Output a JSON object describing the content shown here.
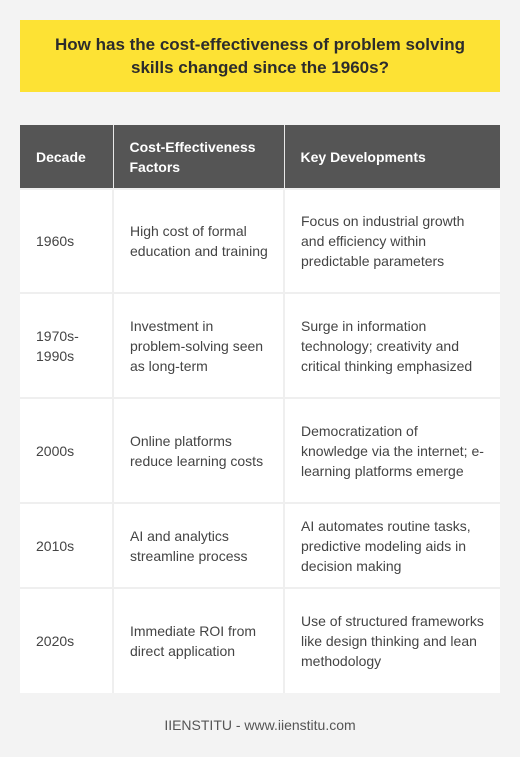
{
  "question": "How has the cost-effectiveness of problem solving skills changed since the 1960s?",
  "table": {
    "headers": [
      "Decade",
      "Cost-Effectiveness Factors",
      "Key Developments"
    ],
    "rows": [
      {
        "decade": "1960s",
        "factors": "High cost of formal education and training",
        "developments": "Focus on industrial growth and efficiency within predictable parameters"
      },
      {
        "decade": "1970s-1990s",
        "factors": "Investment in problem-solving seen as long-term",
        "developments": "Surge in information technology; creativity and critical thinking emphasized"
      },
      {
        "decade": "2000s",
        "factors": "Online platforms reduce learning costs",
        "developments": "Democratization of knowledge via the internet; e-learning platforms emerge"
      },
      {
        "decade": "2010s",
        "factors": "AI and analytics streamline process",
        "developments": "AI automates routine tasks, predictive modeling aids in decision making"
      },
      {
        "decade": "2020s",
        "factors": "Immediate ROI from direct application",
        "developments": "Use of structured frameworks like design thinking and lean methodology"
      }
    ]
  },
  "footer": "IIENSTITU - www.iienstitu.com",
  "colors": {
    "banner": "#fde234",
    "header_bg": "#555555",
    "page_bg": "#f3f3f3"
  }
}
